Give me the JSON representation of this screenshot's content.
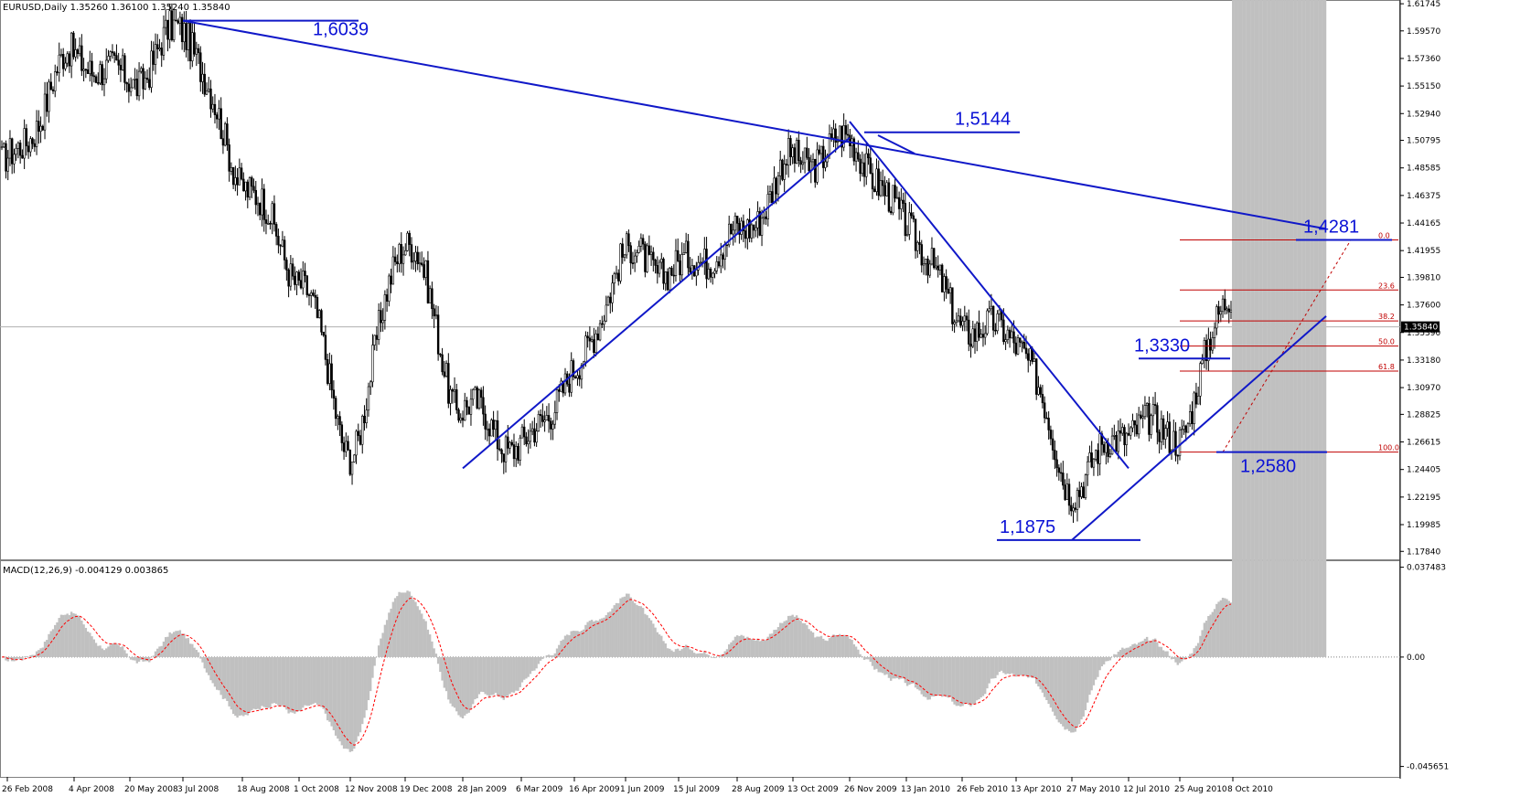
{
  "symbol_header": "EURUSD,Daily  1.35260 1.36100 1.35240 1.35840",
  "macd_header": "MACD(12,26,9) -0.004129 0.003865",
  "current_price_label": "1.35840",
  "colors": {
    "trendline": "#1018c8",
    "fib": "#c00000",
    "macd_hist": "#c0c0c0",
    "macd_signal": "#ff0000",
    "candles": "#000000",
    "grid": "#e8e8e8"
  },
  "chart_data": [
    {
      "type": "candlestick",
      "series": "EURUSD Daily",
      "ylim": [
        1.172,
        1.619
      ],
      "y_ticks": [
        "1.61745",
        "1.59570",
        "1.57360",
        "1.55150",
        "1.52940",
        "1.50795",
        "1.48585",
        "1.46375",
        "1.44165",
        "1.41955",
        "1.39810",
        "1.37600",
        "1.35390",
        "1.33180",
        "1.30970",
        "1.28825",
        "1.26615",
        "1.24405",
        "1.22195",
        "1.19985",
        "1.17840"
      ],
      "x_ticks": [
        "26 Feb 2008",
        "4 Apr 2008",
        "20 May 2008",
        "3 Jul 2008",
        "18 Aug 2008",
        "1 Oct 2008",
        "12 Nov 2008",
        "19 Dec 2008",
        "28 Jan 2009",
        "6 Mar 2009",
        "16 Apr 2009",
        "1 Jun 2009",
        "15 Jul 2009",
        "28 Aug 2009",
        "13 Oct 2009",
        "26 Nov 2009",
        "13 Jan 2010",
        "26 Feb 2010",
        "13 Apr 2010",
        "27 May 2010",
        "12 Jul 2010",
        "25 Aug 2010",
        "8 Oct 2010"
      ],
      "price_path": [
        [
          "26 Feb 2008",
          1.49
        ],
        [
          "4 Apr 2008",
          1.575
        ],
        [
          "20 May 2008",
          1.556
        ],
        [
          "3 Jul 2008",
          1.597
        ],
        [
          "18 Aug 2008",
          1.478
        ],
        [
          "1 Oct 2008",
          1.4
        ],
        [
          "12 Nov 2008",
          1.262
        ],
        [
          "19 Dec 2008",
          1.43
        ],
        [
          "28 Jan 2009",
          1.295
        ],
        [
          "6 Mar 2009",
          1.262
        ],
        [
          "16 Apr 2009",
          1.32
        ],
        [
          "1 Jun 2009",
          1.415
        ],
        [
          "15 Jul 2009",
          1.405
        ],
        [
          "28 Aug 2009",
          1.43
        ],
        [
          "13 Oct 2009",
          1.49
        ],
        [
          "26 Nov 2009",
          1.506
        ],
        [
          "13 Jan 2010",
          1.442
        ],
        [
          "26 Feb 2010",
          1.362
        ],
        [
          "13 Apr 2010",
          1.35
        ],
        [
          "27 May 2010",
          1.232
        ],
        [
          "12 Jul 2010",
          1.278
        ],
        [
          "25 Aug 2010",
          1.275
        ],
        [
          "8 Oct 2010",
          1.392
        ],
        [
          "4 Nov 2010",
          1.42
        ],
        [
          "end",
          1.358
        ]
      ],
      "annotations": [
        {
          "label": "1,6039",
          "price": 1.6039
        },
        {
          "label": "1,5144",
          "price": 1.5144
        },
        {
          "label": "1,4281",
          "price": 1.4281
        },
        {
          "label": "1,3330",
          "price": 1.333
        },
        {
          "label": "1,2580",
          "price": 1.258
        },
        {
          "label": "1,1875",
          "price": 1.1875
        }
      ],
      "fibonacci": {
        "high": 1.4281,
        "low": 1.258,
        "levels": [
          {
            "label": "0.0",
            "ratio": 0.0
          },
          {
            "label": "23.6",
            "ratio": 0.236
          },
          {
            "label": "38.2",
            "ratio": 0.382
          },
          {
            "label": "50.0",
            "ratio": 0.5
          },
          {
            "label": "61.8",
            "ratio": 0.618
          },
          {
            "label": "100.0",
            "ratio": 1.0
          }
        ]
      },
      "trendlines": [
        {
          "from": [
            "3 Jul 2008",
            1.6039
          ],
          "to": [
            "end",
            1.437
          ]
        },
        {
          "from": [
            "28 Jan 2009",
            1.245
          ],
          "to": [
            "26 Nov 2009",
            1.51
          ]
        },
        {
          "from": [
            "26 Nov 2009",
            1.523
          ],
          "to": [
            "12 Jul 2010",
            1.245
          ]
        },
        {
          "from": [
            "27 May 2010",
            1.1875
          ],
          "to": [
            "end",
            1.367
          ]
        }
      ]
    },
    {
      "type": "macd",
      "params": "MACD(12,26,9)",
      "value": -0.004129,
      "signal": 0.003865,
      "ylim": [
        -0.05,
        0.04
      ],
      "y_ticks": [
        "0.037483",
        "0.00",
        "-0.045651"
      ]
    }
  ]
}
